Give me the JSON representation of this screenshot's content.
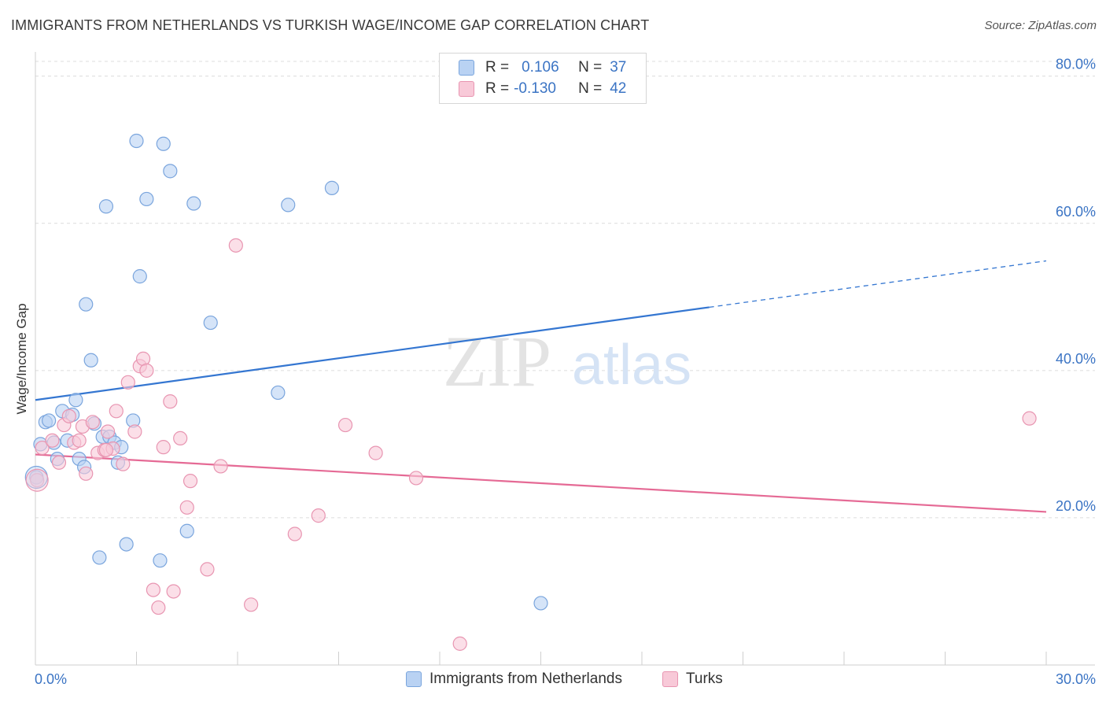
{
  "header": {
    "title": "IMMIGRANTS FROM NETHERLANDS VS TURKISH WAGE/INCOME GAP CORRELATION CHART",
    "source": "Source: ZipAtlas.com"
  },
  "watermark": {
    "zip": "ZIP",
    "atlas": "atlas"
  },
  "legend_top": {
    "rows": [
      {
        "r_label": "R =",
        "r_value": "0.106",
        "n_label": "N =",
        "n_value": "37"
      },
      {
        "r_label": "R =",
        "r_value": "-0.130",
        "n_label": "N =",
        "n_value": "42"
      }
    ]
  },
  "legend_bottom": [
    {
      "label": "Immigrants from Netherlands"
    },
    {
      "label": "Turks"
    }
  ],
  "colors": {
    "blue_fill": "#b9d2f3",
    "blue_stroke": "#7aa5dd",
    "blue_line": "#3476d1",
    "pink_fill": "#f8c9d8",
    "pink_stroke": "#e895b1",
    "pink_line": "#e56a95",
    "tick_label": "#3b74c4"
  },
  "chart_data": {
    "type": "scatter",
    "title": "IMMIGRANTS FROM NETHERLANDS VS TURKISH WAGE/INCOME GAP CORRELATION CHART",
    "xlabel": "",
    "ylabel": "Wage/Income Gap",
    "xlim": [
      0,
      30
    ],
    "ylim": [
      0,
      82
    ],
    "x_tick_labels": [
      "0.0%",
      "30.0%"
    ],
    "y_ticks": [
      20,
      40,
      60,
      80
    ],
    "y_tick_labels": [
      "20.0%",
      "40.0%",
      "60.0%",
      "80.0%"
    ],
    "grid": true,
    "legend_position": "bottom",
    "series": [
      {
        "name": "Immigrants from Netherlands",
        "color": "#3476d1",
        "trend": {
          "x0": 0,
          "y0": 36.0,
          "x1": 20.0,
          "y1": 48.6,
          "dashed_to_x": 30.0,
          "dashed_to_y": 54.9
        },
        "points": [
          [
            0.03,
            25.5
          ],
          [
            0.15,
            30.0
          ],
          [
            0.3,
            33.0
          ],
          [
            0.4,
            33.2
          ],
          [
            0.55,
            30.2
          ],
          [
            0.65,
            28.0
          ],
          [
            0.8,
            34.5
          ],
          [
            0.95,
            30.5
          ],
          [
            1.1,
            34.0
          ],
          [
            1.2,
            36.0
          ],
          [
            1.3,
            28.0
          ],
          [
            1.45,
            26.9
          ],
          [
            1.5,
            49.0
          ],
          [
            1.65,
            41.4
          ],
          [
            1.75,
            32.8
          ],
          [
            1.9,
            14.6
          ],
          [
            2.0,
            31.0
          ],
          [
            2.1,
            62.3
          ],
          [
            2.2,
            31.0
          ],
          [
            2.35,
            30.2
          ],
          [
            2.45,
            27.5
          ],
          [
            2.55,
            29.6
          ],
          [
            2.7,
            16.4
          ],
          [
            2.9,
            33.2
          ],
          [
            3.0,
            71.2
          ],
          [
            3.1,
            52.8
          ],
          [
            3.3,
            63.3
          ],
          [
            3.7,
            14.2
          ],
          [
            3.8,
            70.8
          ],
          [
            4.0,
            67.1
          ],
          [
            4.5,
            18.2
          ],
          [
            4.7,
            62.7
          ],
          [
            5.2,
            46.5
          ],
          [
            7.2,
            37.0
          ],
          [
            7.5,
            62.5
          ],
          [
            8.8,
            64.8
          ],
          [
            15.0,
            8.4
          ]
        ]
      },
      {
        "name": "Turks",
        "color": "#e56a95",
        "trend": {
          "x0": 0,
          "y0": 28.6,
          "x1": 30.0,
          "y1": 20.8
        },
        "points": [
          [
            0.05,
            25.1
          ],
          [
            0.2,
            29.5
          ],
          [
            0.5,
            30.5
          ],
          [
            0.7,
            27.5
          ],
          [
            0.85,
            32.6
          ],
          [
            1.0,
            33.8
          ],
          [
            1.15,
            30.2
          ],
          [
            1.3,
            30.5
          ],
          [
            1.4,
            32.4
          ],
          [
            1.5,
            26.0
          ],
          [
            1.7,
            33.0
          ],
          [
            1.85,
            28.8
          ],
          [
            2.05,
            29.2
          ],
          [
            2.15,
            31.7
          ],
          [
            2.3,
            29.4
          ],
          [
            2.4,
            34.5
          ],
          [
            2.6,
            27.3
          ],
          [
            2.75,
            38.4
          ],
          [
            2.95,
            31.7
          ],
          [
            3.1,
            40.6
          ],
          [
            3.2,
            41.6
          ],
          [
            3.3,
            40.0
          ],
          [
            3.5,
            10.2
          ],
          [
            3.65,
            7.8
          ],
          [
            3.8,
            29.6
          ],
          [
            4.0,
            35.8
          ],
          [
            4.1,
            10.0
          ],
          [
            4.3,
            30.8
          ],
          [
            4.5,
            21.4
          ],
          [
            4.6,
            25.0
          ],
          [
            5.1,
            13.0
          ],
          [
            5.5,
            27.0
          ],
          [
            5.95,
            57.0
          ],
          [
            6.4,
            8.2
          ],
          [
            7.7,
            17.8
          ],
          [
            8.4,
            20.3
          ],
          [
            9.2,
            32.6
          ],
          [
            10.1,
            28.8
          ],
          [
            11.3,
            25.4
          ],
          [
            12.6,
            2.9
          ],
          [
            29.5,
            33.5
          ],
          [
            2.1,
            29.2
          ]
        ]
      }
    ]
  }
}
